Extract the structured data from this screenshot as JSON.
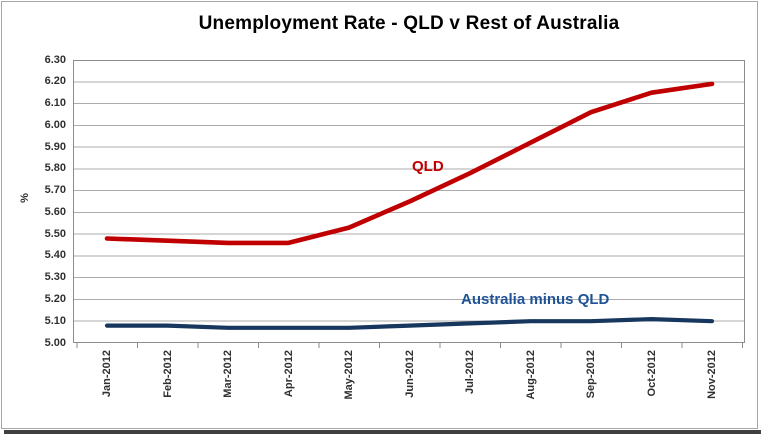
{
  "chart_data": {
    "type": "line",
    "title": "Unemployment Rate - QLD v Rest of Australia",
    "ylabel": "%",
    "ylim": [
      5.0,
      6.3
    ],
    "ytick_step": 0.1,
    "y_tick_labels": [
      "6.30",
      "6.20",
      "6.10",
      "6.00",
      "5.90",
      "5.80",
      "5.70",
      "5.60",
      "5.50",
      "5.40",
      "5.30",
      "5.20",
      "5.10",
      "5.00"
    ],
    "categories": [
      "Jan-2012",
      "Feb-2012",
      "Mar-2012",
      "Apr-2012",
      "May-2012",
      "Jun-2012",
      "Jul-2012",
      "Aug-2012",
      "Sep-2012",
      "Oct-2012",
      "Nov-2012"
    ],
    "series": [
      {
        "name": "QLD",
        "color": "#C00000",
        "label_color": "#C00000",
        "values": [
          5.48,
          5.47,
          5.46,
          5.46,
          5.53,
          5.65,
          5.78,
          5.92,
          6.06,
          6.15,
          6.19
        ]
      },
      {
        "name": "Australia minus QLD",
        "color": "#17375E",
        "label_color": "#1F5397",
        "values": [
          5.08,
          5.08,
          5.07,
          5.07,
          5.07,
          5.08,
          5.09,
          5.1,
          5.1,
          5.11,
          5.1
        ]
      }
    ],
    "grid": "horizontal",
    "legend_position": "inline-annotations",
    "colors": {
      "gridline": "#ABABAB",
      "plot_border": "#8C8C8C",
      "axis_text": "#303030"
    }
  }
}
